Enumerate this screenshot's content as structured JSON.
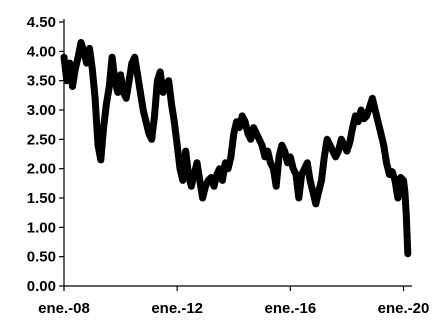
{
  "chart_data": {
    "type": "line",
    "title": "",
    "xlabel": "",
    "ylabel": "",
    "ylim": [
      0,
      4.5
    ],
    "grid": false,
    "y_ticks": [
      "0.00",
      "0.50",
      "1.00",
      "1.50",
      "2.00",
      "2.50",
      "3.00",
      "3.50",
      "4.00",
      "4.50"
    ],
    "x_ticks": [
      {
        "label": "ene.-08",
        "x": 2008.0
      },
      {
        "label": "ene.-12",
        "x": 2012.0
      },
      {
        "label": "ene.-16",
        "x": 2016.0
      },
      {
        "label": "ene.-20",
        "x": 2020.0
      }
    ],
    "xlim": [
      2008.0,
      2020.3
    ],
    "series": [
      {
        "x": [
          2008.0,
          2008.1,
          2008.2,
          2008.3,
          2008.4,
          2008.5,
          2008.6,
          2008.7,
          2008.8,
          2008.9,
          2009.0,
          2009.1,
          2009.2,
          2009.3,
          2009.4,
          2009.5,
          2009.6,
          2009.7,
          2009.8,
          2009.9,
          2010.0,
          2010.1,
          2010.2,
          2010.3,
          2010.4,
          2010.5,
          2010.6,
          2010.7,
          2010.8,
          2010.9,
          2011.0,
          2011.1,
          2011.2,
          2011.3,
          2011.4,
          2011.5,
          2011.6,
          2011.7,
          2011.8,
          2011.9,
          2012.0,
          2012.1,
          2012.2,
          2012.3,
          2012.4,
          2012.5,
          2012.6,
          2012.7,
          2012.8,
          2012.9,
          2013.0,
          2013.1,
          2013.2,
          2013.3,
          2013.4,
          2013.5,
          2013.6,
          2013.7,
          2013.8,
          2013.9,
          2014.0,
          2014.1,
          2014.2,
          2014.3,
          2014.4,
          2014.5,
          2014.6,
          2014.7,
          2014.8,
          2014.9,
          2015.0,
          2015.1,
          2015.2,
          2015.3,
          2015.4,
          2015.5,
          2015.6,
          2015.7,
          2015.8,
          2015.9,
          2016.0,
          2016.1,
          2016.2,
          2016.3,
          2016.4,
          2016.5,
          2016.6,
          2016.7,
          2016.8,
          2016.9,
          2017.0,
          2017.1,
          2017.2,
          2017.3,
          2017.4,
          2017.5,
          2017.6,
          2017.7,
          2017.8,
          2017.9,
          2018.0,
          2018.1,
          2018.2,
          2018.3,
          2018.4,
          2018.5,
          2018.6,
          2018.7,
          2018.8,
          2018.9,
          2019.0,
          2019.1,
          2019.2,
          2019.3,
          2019.4,
          2019.5,
          2019.6,
          2019.7,
          2019.8,
          2019.9,
          2020.0,
          2020.05,
          2020.1,
          2020.15
        ],
        "values": [
          3.9,
          3.5,
          3.8,
          3.4,
          3.7,
          3.9,
          4.15,
          4.0,
          3.8,
          4.05,
          3.7,
          3.2,
          2.4,
          2.15,
          2.7,
          3.1,
          3.4,
          3.9,
          3.5,
          3.3,
          3.6,
          3.3,
          3.2,
          3.5,
          3.8,
          3.9,
          3.6,
          3.3,
          3.0,
          2.8,
          2.6,
          2.5,
          2.9,
          3.5,
          3.65,
          3.3,
          3.4,
          3.5,
          3.1,
          2.8,
          2.4,
          2.0,
          1.8,
          2.3,
          1.9,
          1.7,
          1.9,
          2.1,
          1.8,
          1.5,
          1.7,
          1.8,
          1.85,
          1.7,
          1.9,
          2.0,
          1.8,
          2.1,
          2.0,
          2.2,
          2.6,
          2.8,
          2.7,
          2.9,
          2.8,
          2.6,
          2.5,
          2.7,
          2.6,
          2.5,
          2.4,
          2.2,
          2.3,
          2.1,
          2.0,
          1.7,
          2.2,
          2.4,
          2.3,
          2.1,
          2.2,
          2.0,
          1.9,
          1.5,
          1.9,
          2.0,
          2.1,
          1.8,
          1.6,
          1.4,
          1.6,
          1.8,
          2.2,
          2.5,
          2.4,
          2.3,
          2.2,
          2.3,
          2.5,
          2.4,
          2.3,
          2.45,
          2.7,
          2.9,
          2.8,
          3.0,
          2.85,
          2.9,
          3.05,
          3.2,
          3.0,
          2.8,
          2.6,
          2.4,
          2.1,
          1.9,
          1.95,
          1.8,
          1.5,
          1.85,
          1.8,
          1.6,
          1.2,
          0.55
        ]
      }
    ]
  }
}
